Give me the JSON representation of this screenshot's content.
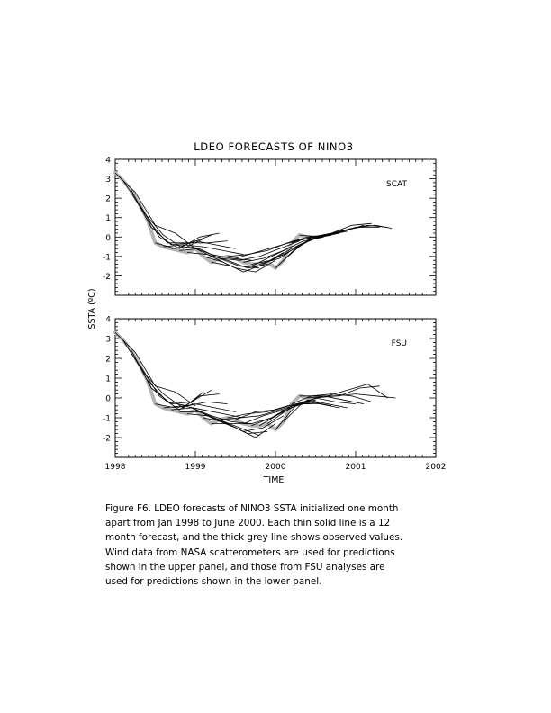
{
  "figure": {
    "title": "LDEO FORECASTS OF NINO3",
    "ylabel": "SSTA (ºC)",
    "xlabel": "TIME",
    "x_ticks": [
      "1998",
      "1999",
      "2000",
      "2001",
      "2002"
    ],
    "caption_lines": [
      "Figure F6.  LDEO forecasts of NINO3 SSTA initialized one month",
      "apart from Jan 1998 to June 2000. Each thin solid line is a 12",
      "month forecast,  and the thick grey line shows observed values.",
      "Wind data from NASA scatterometers  are used for  predictions",
      "shown in the upper panel,   and those from  FSU analyses are",
      "used for predictions shown in the lower panel."
    ]
  },
  "colors": {
    "observed": "#b4b4b4",
    "forecast": "#000000",
    "axis": "#000000"
  },
  "chart_data": [
    {
      "type": "line",
      "panel_label": "SCAT",
      "x_unit": "year",
      "xlim": [
        1998,
        2002
      ],
      "ylim": [
        -3,
        4
      ],
      "y_ticks": [
        -2,
        -1,
        0,
        1,
        2,
        3,
        4
      ],
      "observed": {
        "x": [
          1998.0,
          1998.1,
          1998.2,
          1998.3,
          1998.4,
          1998.5,
          1998.6,
          1998.7,
          1998.8,
          1998.9,
          1999.0,
          1999.1,
          1999.2,
          1999.3,
          1999.4,
          1999.5,
          1999.6,
          1999.7,
          1999.8,
          1999.9,
          2000.0,
          2000.1,
          2000.2,
          2000.3,
          2000.4,
          2000.5
        ],
        "y": [
          3.3,
          2.9,
          2.4,
          1.7,
          0.9,
          -0.3,
          -0.5,
          -0.6,
          -0.7,
          -0.8,
          -0.6,
          -1.0,
          -1.3,
          -1.1,
          -1.0,
          -1.1,
          -1.3,
          -1.4,
          -1.4,
          -1.3,
          -1.6,
          -1.2,
          -0.3,
          0.1,
          0.0,
          0.0
        ]
      },
      "forecasts": [
        {
          "x": [
            1998.0,
            1998.25,
            1998.5,
            1998.75,
            1999.0
          ],
          "y": [
            3.3,
            2.3,
            0.6,
            0.2,
            -0.6
          ]
        },
        {
          "x": [
            1998.1,
            1998.35,
            1998.6,
            1998.85,
            1999.1
          ],
          "y": [
            2.9,
            1.3,
            0.1,
            -0.6,
            -0.1
          ]
        },
        {
          "x": [
            1998.2,
            1998.45,
            1998.7,
            1998.95,
            1999.2
          ],
          "y": [
            2.4,
            0.5,
            -0.4,
            -0.3,
            0.1
          ]
        },
        {
          "x": [
            1998.3,
            1998.55,
            1998.8,
            1999.05,
            1999.3
          ],
          "y": [
            1.7,
            0.0,
            -0.6,
            0.0,
            0.2
          ]
        },
        {
          "x": [
            1998.4,
            1998.65,
            1998.9,
            1999.15,
            1999.4
          ],
          "y": [
            0.9,
            -0.3,
            -0.3,
            -0.3,
            -0.2
          ]
        },
        {
          "x": [
            1998.5,
            1998.75,
            1999.0,
            1999.25,
            1999.5
          ],
          "y": [
            -0.3,
            -0.6,
            -0.2,
            -0.4,
            -0.6
          ]
        },
        {
          "x": [
            1998.6,
            1998.85,
            1999.1,
            1999.35,
            1999.6
          ],
          "y": [
            -0.5,
            -0.4,
            -0.5,
            -0.7,
            -0.9
          ]
        },
        {
          "x": [
            1998.7,
            1998.95,
            1999.2,
            1999.45,
            1999.7
          ],
          "y": [
            -0.6,
            -0.5,
            -0.9,
            -1.1,
            -1.2
          ]
        },
        {
          "x": [
            1998.8,
            1999.05,
            1999.3,
            1999.55,
            1999.8
          ],
          "y": [
            -0.7,
            -0.6,
            -1.1,
            -1.5,
            -1.6
          ]
        },
        {
          "x": [
            1998.9,
            1999.15,
            1999.4,
            1999.65,
            1999.9
          ],
          "y": [
            -0.8,
            -0.9,
            -1.2,
            -1.6,
            -1.4
          ]
        },
        {
          "x": [
            1999.0,
            1999.25,
            1999.5,
            1999.75,
            2000.0
          ],
          "y": [
            -0.6,
            -1.1,
            -1.6,
            -1.8,
            -1.2
          ]
        },
        {
          "x": [
            1999.1,
            1999.35,
            1999.6,
            1999.85,
            2000.1
          ],
          "y": [
            -1.0,
            -1.3,
            -1.8,
            -1.4,
            -0.8
          ]
        },
        {
          "x": [
            1999.2,
            1999.45,
            1999.7,
            1999.95,
            2000.2
          ],
          "y": [
            -1.3,
            -1.5,
            -1.5,
            -1.0,
            -0.5
          ]
        },
        {
          "x": [
            1999.3,
            1999.55,
            1999.8,
            2000.05,
            2000.3
          ],
          "y": [
            -1.1,
            -1.2,
            -1.0,
            -0.6,
            -0.2
          ]
        },
        {
          "x": [
            1999.4,
            1999.65,
            1999.9,
            2000.15,
            2000.4
          ],
          "y": [
            -1.0,
            -0.9,
            -0.7,
            -0.3,
            0.0
          ]
        },
        {
          "x": [
            1999.5,
            1999.75,
            2000.0,
            2000.25,
            2000.5
          ],
          "y": [
            -1.1,
            -0.8,
            -0.5,
            -0.2,
            0.0
          ]
        },
        {
          "x": [
            1999.6,
            1999.85,
            2000.1,
            2000.35,
            2000.6
          ],
          "y": [
            -1.3,
            -1.1,
            -0.7,
            -0.2,
            0.0
          ]
        },
        {
          "x": [
            1999.7,
            1999.95,
            2000.2,
            2000.45,
            2000.7
          ],
          "y": [
            -1.4,
            -1.2,
            -0.6,
            -0.1,
            0.1
          ]
        },
        {
          "x": [
            1999.8,
            2000.05,
            2000.3,
            2000.55,
            2000.8
          ],
          "y": [
            -1.4,
            -1.1,
            -0.4,
            0.0,
            0.2
          ]
        },
        {
          "x": [
            1999.9,
            2000.15,
            2000.4,
            2000.65,
            2000.9
          ],
          "y": [
            -1.3,
            -0.8,
            -0.2,
            0.1,
            0.3
          ]
        },
        {
          "x": [
            2000.0,
            2000.25,
            2000.5,
            2000.75,
            2001.0
          ],
          "y": [
            -1.6,
            -0.6,
            0.0,
            0.2,
            0.5
          ]
        },
        {
          "x": [
            2000.1,
            2000.35,
            2000.6,
            2000.85,
            2001.1
          ],
          "y": [
            -1.2,
            -0.3,
            0.1,
            0.3,
            0.6
          ]
        },
        {
          "x": [
            2000.2,
            2000.45,
            2000.7,
            2000.95,
            2001.2
          ],
          "y": [
            -0.3,
            0.0,
            0.2,
            0.6,
            0.7
          ]
        },
        {
          "x": [
            2000.3,
            2000.55,
            2000.8,
            2001.05,
            2001.3
          ],
          "y": [
            0.1,
            0.0,
            0.3,
            0.5,
            0.5
          ]
        },
        {
          "x": [
            2000.4,
            2000.65,
            2000.9,
            2001.15,
            2001.4
          ],
          "y": [
            0.0,
            0.1,
            0.4,
            0.6,
            0.5
          ]
        },
        {
          "x": [
            2000.5,
            2000.75,
            2001.0,
            2001.25,
            2001.45
          ],
          "y": [
            0.0,
            0.2,
            0.5,
            0.6,
            0.45
          ]
        }
      ]
    },
    {
      "type": "line",
      "panel_label": "FSU",
      "x_unit": "year",
      "xlim": [
        1998,
        2002
      ],
      "ylim": [
        -3,
        4
      ],
      "y_ticks": [
        -2,
        -1,
        0,
        1,
        2,
        3,
        4
      ],
      "observed": {
        "x": [
          1998.0,
          1998.1,
          1998.2,
          1998.3,
          1998.4,
          1998.5,
          1998.6,
          1998.7,
          1998.8,
          1998.9,
          1999.0,
          1999.1,
          1999.2,
          1999.3,
          1999.4,
          1999.5,
          1999.6,
          1999.7,
          1999.8,
          1999.9,
          2000.0,
          2000.1,
          2000.2,
          2000.3,
          2000.4,
          2000.5
        ],
        "y": [
          3.3,
          2.9,
          2.4,
          1.7,
          0.9,
          -0.3,
          -0.5,
          -0.6,
          -0.7,
          -0.8,
          -0.6,
          -1.0,
          -1.3,
          -1.1,
          -1.0,
          -1.1,
          -1.3,
          -1.4,
          -1.4,
          -1.3,
          -1.6,
          -1.2,
          -0.3,
          0.1,
          0.0,
          0.0
        ]
      },
      "forecasts": [
        {
          "x": [
            1998.0,
            1998.25,
            1998.5,
            1998.75,
            1999.0
          ],
          "y": [
            3.3,
            2.3,
            0.6,
            0.3,
            -0.4
          ]
        },
        {
          "x": [
            1998.1,
            1998.35,
            1998.6,
            1998.85,
            1999.1
          ],
          "y": [
            2.9,
            1.3,
            0.2,
            -0.5,
            0.3
          ]
        },
        {
          "x": [
            1998.2,
            1998.45,
            1998.7,
            1998.95,
            1999.2
          ],
          "y": [
            2.4,
            0.5,
            -0.3,
            -0.2,
            0.4
          ]
        },
        {
          "x": [
            1998.3,
            1998.55,
            1998.8,
            1999.05,
            1999.3
          ],
          "y": [
            1.7,
            0.1,
            -0.6,
            0.1,
            0.2
          ]
        },
        {
          "x": [
            1998.4,
            1998.65,
            1998.9,
            1999.15,
            1999.4
          ],
          "y": [
            0.9,
            -0.2,
            -0.4,
            -0.2,
            -0.3
          ]
        },
        {
          "x": [
            1998.5,
            1998.75,
            1999.0,
            1999.25,
            1999.5
          ],
          "y": [
            -0.3,
            -0.5,
            -0.3,
            -0.5,
            -0.7
          ]
        },
        {
          "x": [
            1998.6,
            1998.85,
            1999.1,
            1999.35,
            1999.6
          ],
          "y": [
            -0.5,
            -0.4,
            -0.6,
            -0.8,
            -1.0
          ]
        },
        {
          "x": [
            1998.7,
            1998.95,
            1999.2,
            1999.45,
            1999.7
          ],
          "y": [
            -0.6,
            -0.5,
            -0.9,
            -1.2,
            -1.3
          ]
        },
        {
          "x": [
            1998.8,
            1999.05,
            1999.3,
            1999.55,
            1999.8
          ],
          "y": [
            -0.7,
            -0.7,
            -1.1,
            -1.5,
            -1.9
          ]
        },
        {
          "x": [
            1998.9,
            1999.15,
            1999.4,
            1999.65,
            1999.9
          ],
          "y": [
            -0.8,
            -0.9,
            -1.3,
            -1.8,
            -1.7
          ]
        },
        {
          "x": [
            1999.0,
            1999.25,
            1999.5,
            1999.75,
            2000.0
          ],
          "y": [
            -0.6,
            -1.1,
            -1.5,
            -2.0,
            -1.3
          ]
        },
        {
          "x": [
            1999.1,
            1999.35,
            1999.6,
            1999.85,
            2000.1
          ],
          "y": [
            -1.0,
            -1.2,
            -1.7,
            -1.5,
            -0.9
          ]
        },
        {
          "x": [
            1999.2,
            1999.45,
            1999.7,
            1999.95,
            2000.2
          ],
          "y": [
            -1.3,
            -1.3,
            -1.3,
            -1.0,
            -0.5
          ]
        },
        {
          "x": [
            1999.3,
            1999.55,
            1999.8,
            2000.05,
            2000.3
          ],
          "y": [
            -1.1,
            -1.0,
            -0.9,
            -0.6,
            -0.3
          ]
        },
        {
          "x": [
            1999.4,
            1999.65,
            1999.9,
            2000.15,
            2000.4
          ],
          "y": [
            -1.0,
            -0.8,
            -0.7,
            -0.4,
            -0.2
          ]
        },
        {
          "x": [
            1999.5,
            1999.75,
            2000.0,
            2000.25,
            2000.5
          ],
          "y": [
            -1.1,
            -0.7,
            -0.6,
            -0.3,
            -0.1
          ]
        },
        {
          "x": [
            1999.6,
            1999.85,
            2000.1,
            2000.35,
            2000.6
          ],
          "y": [
            -1.3,
            -0.9,
            -0.6,
            -0.3,
            -0.2
          ]
        },
        {
          "x": [
            1999.7,
            1999.95,
            2000.2,
            2000.45,
            2000.7
          ],
          "y": [
            -1.4,
            -1.0,
            -0.4,
            -0.2,
            -0.4
          ]
        },
        {
          "x": [
            1999.8,
            2000.05,
            2000.3,
            2000.55,
            2000.8
          ],
          "y": [
            -1.4,
            -0.8,
            -0.3,
            -0.3,
            -0.5
          ]
        },
        {
          "x": [
            1999.9,
            2000.15,
            2000.4,
            2000.65,
            2000.9
          ],
          "y": [
            -1.3,
            -0.6,
            -0.1,
            -0.3,
            -0.5
          ]
        },
        {
          "x": [
            2000.0,
            2000.25,
            2000.5,
            2000.75,
            2001.0
          ],
          "y": [
            -1.6,
            -0.4,
            0.0,
            -0.2,
            -0.3
          ]
        },
        {
          "x": [
            2000.1,
            2000.35,
            2000.6,
            2000.85,
            2001.1
          ],
          "y": [
            -1.2,
            -0.2,
            0.1,
            -0.1,
            -0.3
          ]
        },
        {
          "x": [
            2000.2,
            2000.45,
            2000.7,
            2000.95,
            2001.2
          ],
          "y": [
            -0.3,
            0.1,
            0.2,
            0.1,
            -0.2
          ]
        },
        {
          "x": [
            2000.3,
            2000.55,
            2000.8,
            2001.05,
            2001.3
          ],
          "y": [
            0.1,
            0.1,
            0.1,
            0.5,
            0.6
          ]
        },
        {
          "x": [
            2000.4,
            2000.65,
            2000.9,
            2001.15,
            2001.4
          ],
          "y": [
            0.0,
            0.1,
            0.4,
            0.7,
            0.0
          ]
        },
        {
          "x": [
            2000.5,
            2000.75,
            2001.0,
            2001.25,
            2001.5
          ],
          "y": [
            0.0,
            0.1,
            0.2,
            0.1,
            0.0
          ]
        }
      ]
    }
  ]
}
